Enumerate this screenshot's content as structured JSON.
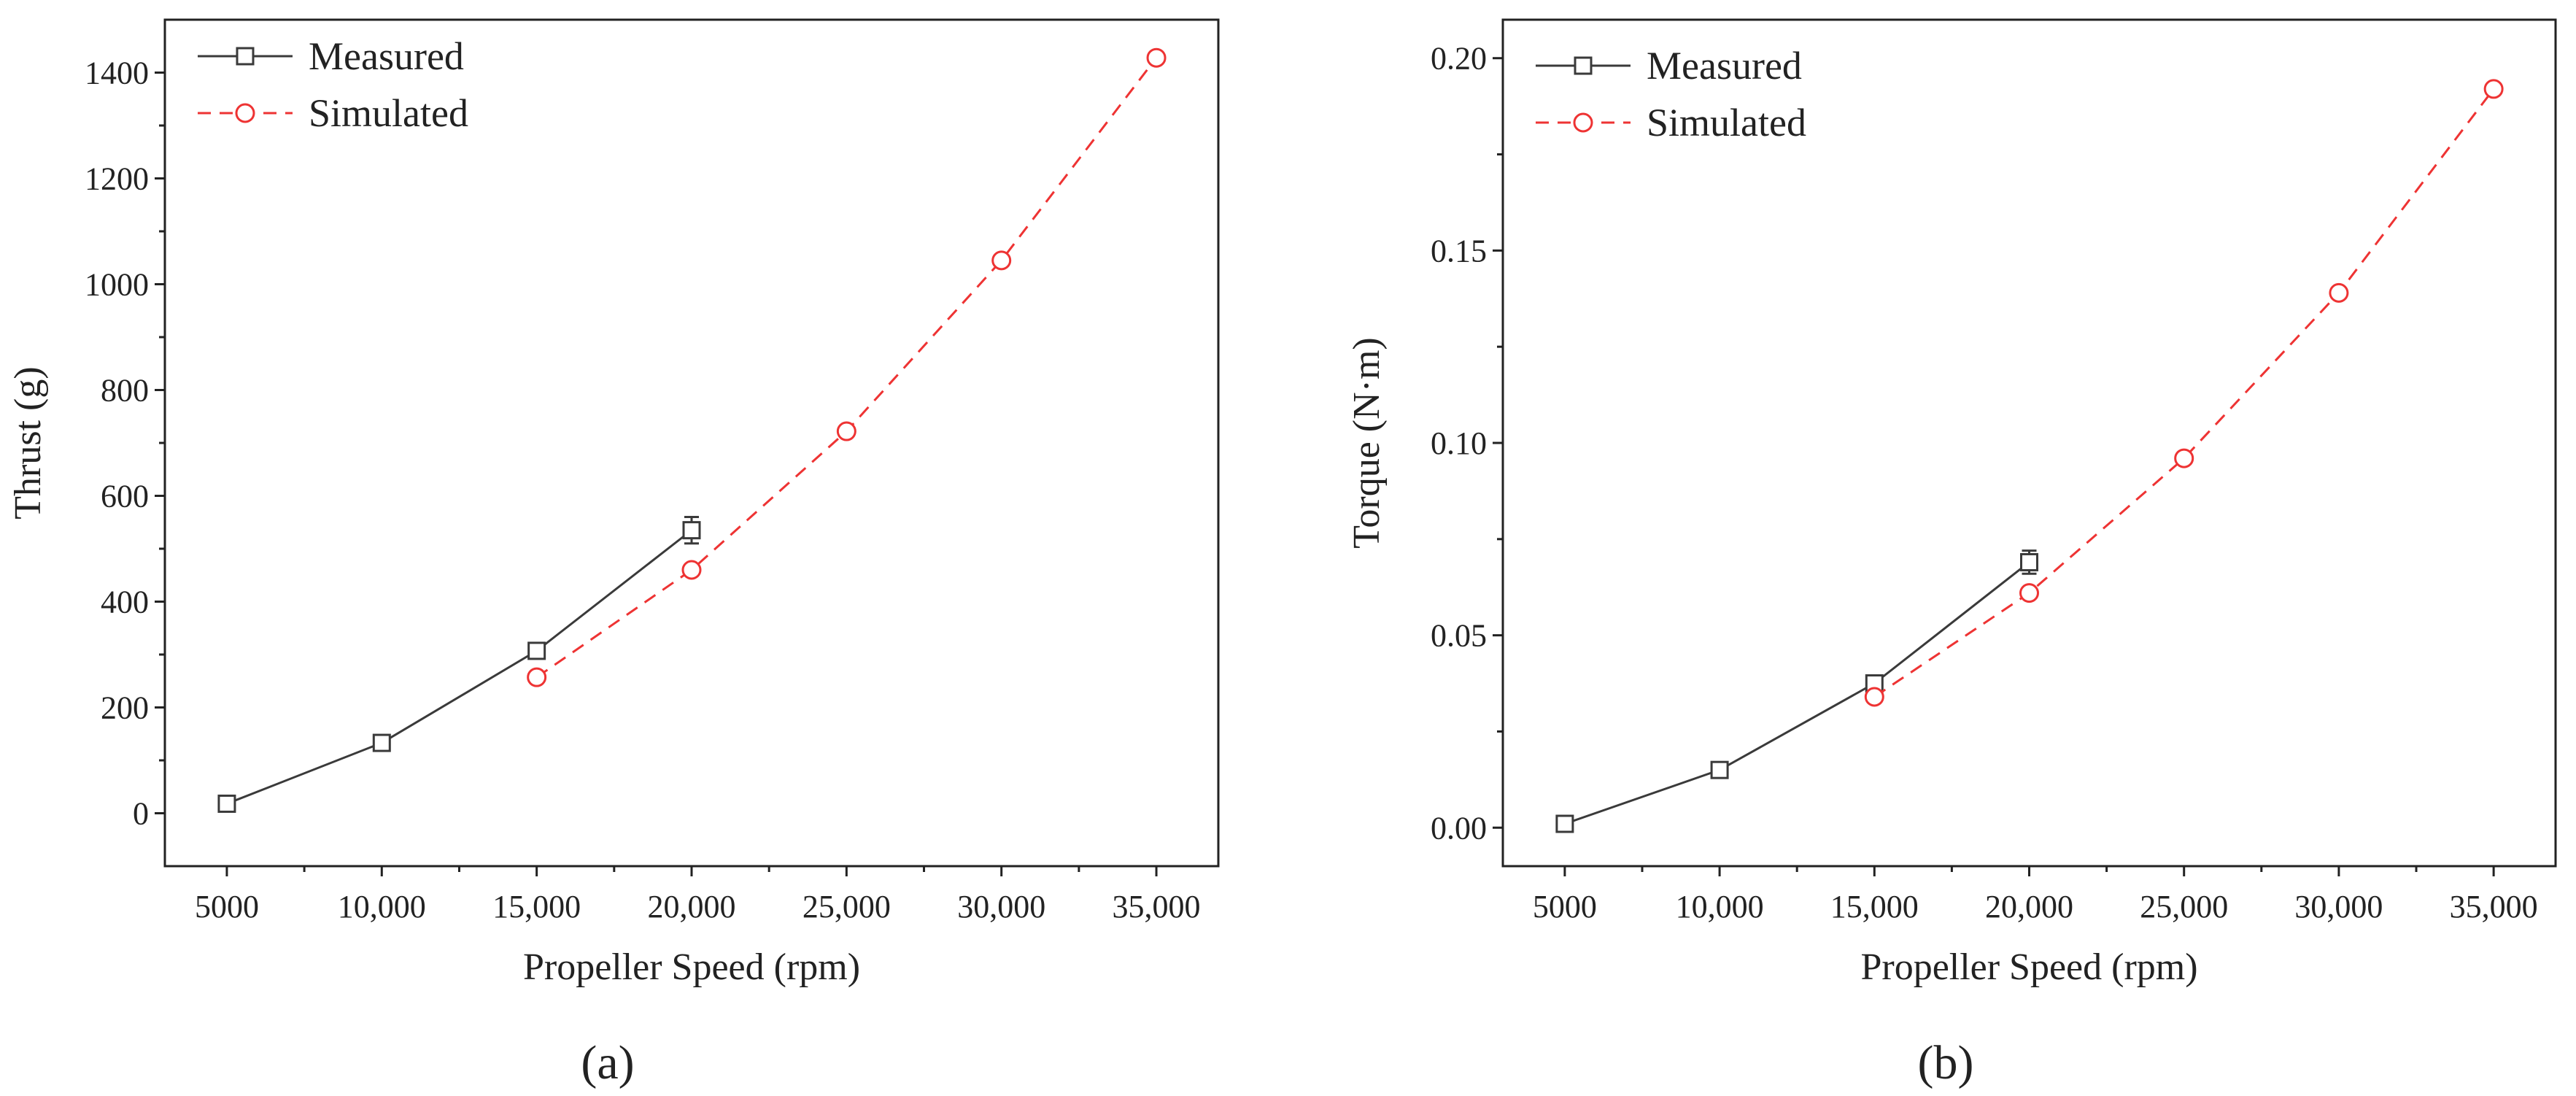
{
  "panel_labels": [
    "(a)",
    "(b)"
  ],
  "chart_data": [
    {
      "type": "line",
      "panel": "a",
      "title": "",
      "xlabel": "Propeller Speed (rpm)",
      "ylabel": "Thrust (g)",
      "xlim": [
        3000,
        37000
      ],
      "ylim": [
        -100,
        1500
      ],
      "xticks": [
        5000,
        10000,
        15000,
        20000,
        25000,
        30000,
        35000
      ],
      "xtick_labels": [
        "5000",
        "10,000",
        "15,000",
        "20,000",
        "25,000",
        "30,000",
        "35,000"
      ],
      "yticks": [
        0,
        200,
        400,
        600,
        800,
        1000,
        1200,
        1400
      ],
      "ytick_labels": [
        "0",
        "200",
        "400",
        "600",
        "800",
        "1000",
        "1200",
        "1400"
      ],
      "grid": false,
      "legend_position": "top-left",
      "series": [
        {
          "name": "Measured",
          "marker": "square",
          "style": "solid",
          "color": "#3a3a3a",
          "x": [
            5000,
            10000,
            15000,
            20000
          ],
          "values": [
            18,
            133,
            307,
            535
          ],
          "errors": [
            8,
            10,
            12,
            25
          ]
        },
        {
          "name": "Simulated",
          "marker": "circle",
          "style": "dashed",
          "color": "#ee3333",
          "x": [
            15000,
            20000,
            25000,
            30000,
            35000
          ],
          "values": [
            257,
            460,
            722,
            1045,
            1428
          ],
          "errors": []
        }
      ]
    },
    {
      "type": "line",
      "panel": "b",
      "title": "",
      "xlabel": "Propeller Speed (rpm)",
      "ylabel": "Torque (N·m)",
      "xlim": [
        3000,
        37000
      ],
      "ylim": [
        -0.01,
        0.21
      ],
      "xticks": [
        5000,
        10000,
        15000,
        20000,
        25000,
        30000,
        35000
      ],
      "xtick_labels": [
        "5000",
        "10,000",
        "15,000",
        "20,000",
        "25,000",
        "30,000",
        "35,000"
      ],
      "yticks": [
        0,
        0.05,
        0.1,
        0.15,
        0.2
      ],
      "ytick_labels": [
        "0.00",
        "0.05",
        "0.10",
        "0.15",
        "0.20"
      ],
      "grid": false,
      "legend_position": "top-left",
      "series": [
        {
          "name": "Measured",
          "marker": "square",
          "style": "solid",
          "color": "#3a3a3a",
          "x": [
            5000,
            10000,
            15000,
            20000
          ],
          "values": [
            0.001,
            0.015,
            0.0375,
            0.069
          ],
          "errors": [
            0.001,
            0.0012,
            0.0015,
            0.003
          ]
        },
        {
          "name": "Simulated",
          "marker": "circle",
          "style": "dashed",
          "color": "#ee3333",
          "x": [
            15000,
            20000,
            25000,
            30000,
            35000
          ],
          "values": [
            0.034,
            0.061,
            0.096,
            0.139,
            0.192
          ],
          "errors": []
        }
      ]
    }
  ]
}
